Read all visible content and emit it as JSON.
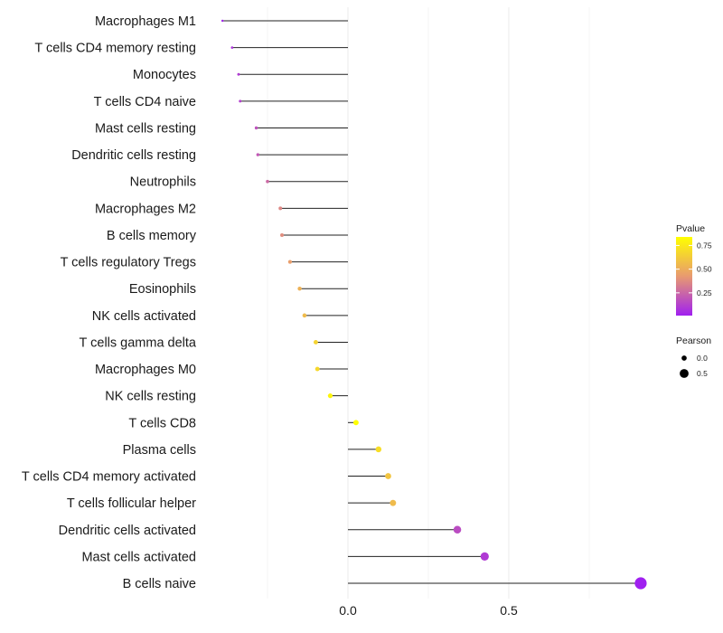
{
  "chart_data": {
    "type": "lollipop",
    "title": "",
    "xlabel": "",
    "ylabel": "",
    "xlim": [
      -0.47,
      1.0
    ],
    "x_ticks": [
      0.0,
      0.5
    ],
    "x_tick_labels": [
      "0.0",
      "0.5"
    ],
    "grid": true,
    "color_legend": {
      "title": "Pvalue",
      "ticks": [
        0.25,
        0.5,
        0.75
      ],
      "tick_labels": [
        "0.25",
        "0.50",
        "0.75"
      ],
      "range": [
        0.01,
        0.84
      ],
      "low_color": "#a020f0",
      "mid_color": "#e89a70",
      "high_color": "#ffff00"
    },
    "size_legend": {
      "title": "Pearson",
      "values": [
        0.0,
        0.5
      ],
      "labels": [
        "0.0",
        "0.5"
      ]
    },
    "points": [
      {
        "category": "Macrophages M1",
        "pearson": -0.39,
        "pvalue": 0.02
      },
      {
        "category": "T cells CD4 memory resting",
        "pearson": -0.36,
        "pvalue": 0.08
      },
      {
        "category": "Monocytes",
        "pearson": -0.34,
        "pvalue": 0.1
      },
      {
        "category": "T cells CD4 naive",
        "pearson": -0.335,
        "pvalue": 0.12
      },
      {
        "category": "Mast cells resting",
        "pearson": -0.285,
        "pvalue": 0.18
      },
      {
        "category": "Dendritic cells resting",
        "pearson": -0.28,
        "pvalue": 0.2
      },
      {
        "category": "Neutrophils",
        "pearson": -0.25,
        "pvalue": 0.26
      },
      {
        "category": "Macrophages M2",
        "pearson": -0.21,
        "pvalue": 0.36
      },
      {
        "category": "B cells memory",
        "pearson": -0.205,
        "pvalue": 0.38
      },
      {
        "category": "T cells regulatory  Tregs ",
        "pearson": -0.18,
        "pvalue": 0.44
      },
      {
        "category": "Eosinophils",
        "pearson": -0.15,
        "pvalue": 0.52
      },
      {
        "category": "NK cells activated",
        "pearson": -0.135,
        "pvalue": 0.56
      },
      {
        "category": "T cells gamma delta",
        "pearson": -0.1,
        "pvalue": 0.66
      },
      {
        "category": "Macrophages M0",
        "pearson": -0.095,
        "pvalue": 0.68
      },
      {
        "category": "NK cells resting",
        "pearson": -0.055,
        "pvalue": 0.8
      },
      {
        "category": "T cells CD8",
        "pearson": 0.025,
        "pvalue": 0.84
      },
      {
        "category": "Plasma cells",
        "pearson": 0.095,
        "pvalue": 0.7
      },
      {
        "category": "T cells CD4 memory activated",
        "pearson": 0.125,
        "pvalue": 0.6
      },
      {
        "category": "T cells follicular helper",
        "pearson": 0.14,
        "pvalue": 0.56
      },
      {
        "category": "Dendritic cells activated",
        "pearson": 0.34,
        "pvalue": 0.16
      },
      {
        "category": "Mast cells activated",
        "pearson": 0.425,
        "pvalue": 0.1
      },
      {
        "category": "B cells naive",
        "pearson": 0.91,
        "pvalue": 0.01
      }
    ]
  }
}
